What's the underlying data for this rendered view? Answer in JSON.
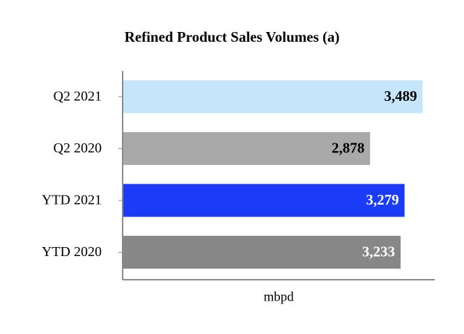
{
  "chart_data": {
    "type": "hbar",
    "title": "Refined Product Sales Volumes (a)",
    "categories": [
      "Q2 2021",
      "Q2 2020",
      "YTD 2021",
      "YTD 2020"
    ],
    "values": [
      3489,
      2878,
      3279,
      3233
    ],
    "value_labels": [
      "3,489",
      "2,878",
      "3,279",
      "3,233"
    ],
    "colors": [
      "#c5e5fb",
      "#a9a9a9",
      "#1a3cf7",
      "#878787"
    ],
    "label_colors": [
      "#000000",
      "#000000",
      "#ffffff",
      "#ffffff"
    ],
    "xlabel": "mbpd",
    "xlim": [
      0,
      3630
    ]
  }
}
